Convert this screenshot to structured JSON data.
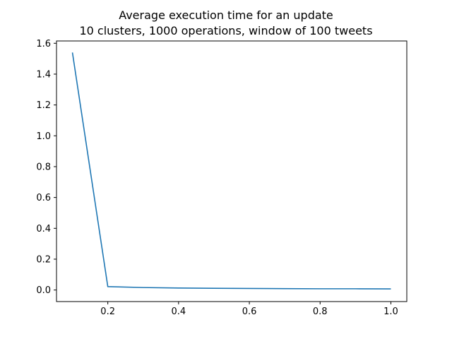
{
  "chart_data": {
    "type": "line",
    "title": "Average execution time for an update",
    "subtitle": "10 clusters, 1000 operations, window of 100 tweets",
    "xlabel": "",
    "ylabel": "",
    "xlim": [
      0.055,
      1.045
    ],
    "ylim": [
      -0.075,
      1.615
    ],
    "x_ticks": [
      0.2,
      0.4,
      0.6,
      0.8,
      1.0
    ],
    "x_tick_labels": [
      "0.2",
      "0.4",
      "0.6",
      "0.8",
      "1.0"
    ],
    "y_ticks": [
      0.0,
      0.2,
      0.4,
      0.6,
      0.8,
      1.0,
      1.2,
      1.4,
      1.6
    ],
    "y_tick_labels": [
      "0.0",
      "0.2",
      "0.4",
      "0.6",
      "0.8",
      "1.0",
      "1.2",
      "1.4",
      "1.6"
    ],
    "grid": false,
    "legend": "none",
    "series": [
      {
        "color": "#1f77b4",
        "x": [
          0.1,
          0.2,
          0.3,
          0.4,
          0.5,
          0.6,
          0.7,
          0.8,
          0.9,
          1.0
        ],
        "y": [
          1.54,
          0.022,
          0.016,
          0.013,
          0.011,
          0.01,
          0.009,
          0.008,
          0.008,
          0.007
        ]
      }
    ]
  }
}
